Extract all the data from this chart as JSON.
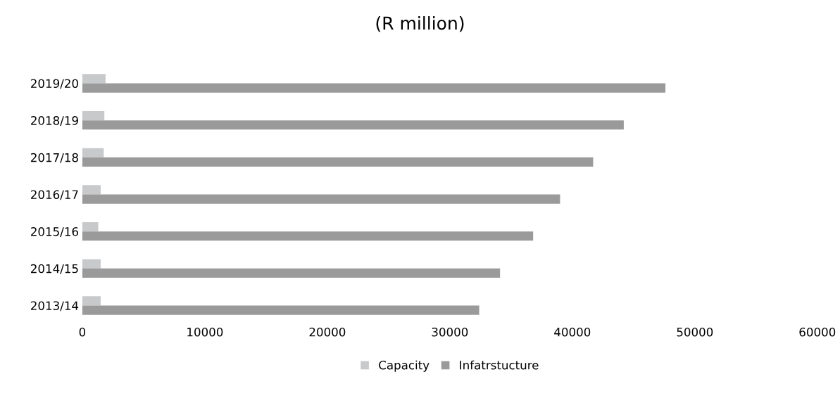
{
  "chart_data": {
    "type": "bar",
    "orientation": "horizontal",
    "title": "(R million)",
    "categories": [
      "2019/20",
      "2018/19",
      "2017/18",
      "2016/17",
      "2015/16",
      "2014/15",
      "2013/14"
    ],
    "series": [
      {
        "name": "Capacity",
        "color": "#c8c9cb",
        "values": [
          1900,
          1800,
          1750,
          1500,
          1300,
          1500,
          1500
        ]
      },
      {
        "name": "Infatrstucture",
        "color": "#9a9a9a",
        "values": [
          47600,
          44200,
          41700,
          39000,
          36800,
          34100,
          32400
        ]
      }
    ],
    "xlim": [
      0,
      60000
    ],
    "xticks": [
      0,
      10000,
      20000,
      30000,
      40000,
      50000,
      60000
    ],
    "grid": false,
    "legend": "bottom"
  }
}
